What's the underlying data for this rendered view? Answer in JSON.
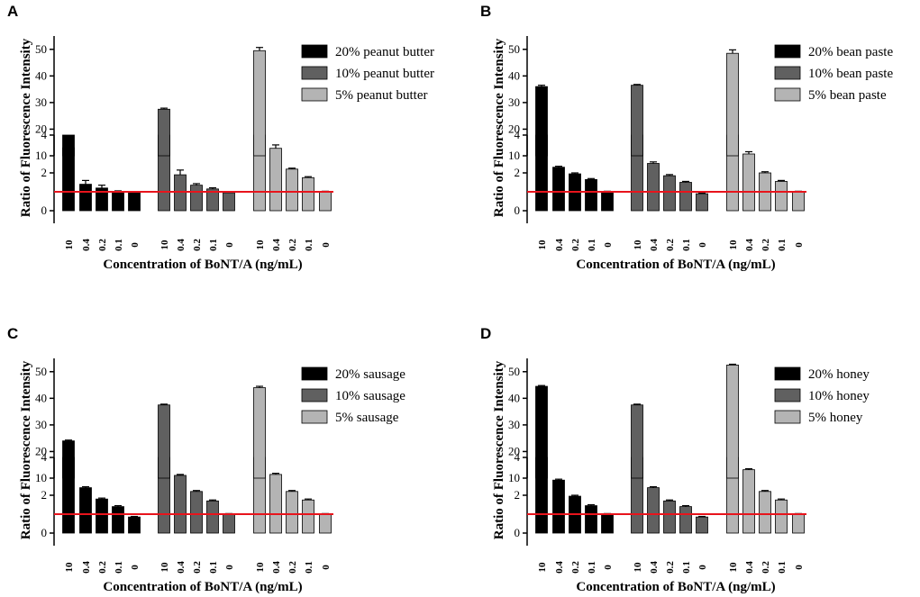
{
  "colors": {
    "series": [
      "#000000",
      "#606060",
      "#b4b4b4"
    ],
    "threshold": "#e8141c",
    "axis": "#000000"
  },
  "chart_data": [
    {
      "panel": "A",
      "type": "bar",
      "title": "",
      "xlabel": "Concentration of BoNT/A (ng/mL)",
      "ylabel": "Ratio of Fluorescence Intensity",
      "axis_break": {
        "lower_range": [
          0,
          4
        ],
        "upper_range": [
          10,
          55
        ]
      },
      "yticks_lower": [
        0,
        2,
        4
      ],
      "yticks_upper": [
        10,
        20,
        30,
        40,
        50
      ],
      "threshold": 1,
      "categories": [
        "10",
        "0.4",
        "0.2",
        "0.1",
        "0"
      ],
      "legend_position": "top-right",
      "series": [
        {
          "name": "20% peanut butter",
          "values": [
            13,
            1.4,
            1.2,
            1.0,
            0.95
          ],
          "errors": [
            0.3,
            0.2,
            0.15,
            0.05,
            0.05
          ]
        },
        {
          "name": "10% peanut butter",
          "values": [
            27.5,
            1.9,
            1.35,
            1.15,
            0.95
          ],
          "errors": [
            0.4,
            0.25,
            0.08,
            0.06,
            0.05
          ]
        },
        {
          "name": "5% peanut butter",
          "values": [
            49.5,
            3.3,
            2.2,
            1.75,
            1.0
          ],
          "errors": [
            1.2,
            0.18,
            0.05,
            0.05,
            0.03
          ]
        }
      ]
    },
    {
      "panel": "B",
      "type": "bar",
      "title": "",
      "xlabel": "Concentration of BoNT/A (ng/mL)",
      "ylabel": "Ratio of Fluorescence Intensity",
      "axis_break": {
        "lower_range": [
          0,
          4
        ],
        "upper_range": [
          10,
          55
        ]
      },
      "yticks_lower": [
        0,
        2,
        4
      ],
      "yticks_upper": [
        10,
        20,
        30,
        40,
        50
      ],
      "threshold": 1,
      "categories": [
        "10",
        "0.4",
        "0.2",
        "0.1",
        "0"
      ],
      "legend_position": "top-right",
      "series": [
        {
          "name": "20% bean paste",
          "values": [
            36,
            2.3,
            1.95,
            1.65,
            1.0
          ],
          "errors": [
            0.5,
            0.05,
            0.05,
            0.05,
            0.03
          ]
        },
        {
          "name": "10% bean paste",
          "values": [
            36.5,
            2.5,
            1.85,
            1.5,
            0.9
          ],
          "errors": [
            0.3,
            0.08,
            0.06,
            0.05,
            0.03
          ]
        },
        {
          "name": "5% bean paste",
          "values": [
            48.5,
            3.0,
            2.0,
            1.55,
            1.0
          ],
          "errors": [
            1.3,
            0.12,
            0.06,
            0.05,
            0.03
          ]
        }
      ]
    },
    {
      "panel": "C",
      "type": "bar",
      "title": "",
      "xlabel": "Concentration of BoNT/A (ng/mL)",
      "ylabel": "Ratio of Fluorescence Intensity",
      "axis_break": {
        "lower_range": [
          0,
          4
        ],
        "upper_range": [
          10,
          55
        ]
      },
      "yticks_lower": [
        0,
        2,
        4
      ],
      "yticks_upper": [
        10,
        20,
        30,
        40,
        50
      ],
      "threshold": 1,
      "categories": [
        "10",
        "0.4",
        "0.2",
        "0.1",
        "0"
      ],
      "legend_position": "top-right",
      "series": [
        {
          "name": "20% sausage",
          "values": [
            24,
            2.4,
            1.8,
            1.4,
            0.85
          ],
          "errors": [
            0.3,
            0.05,
            0.05,
            0.05,
            0.03
          ]
        },
        {
          "name": "10% sausage",
          "values": [
            37.5,
            3.05,
            2.2,
            1.7,
            1.0
          ],
          "errors": [
            0.3,
            0.05,
            0.05,
            0.05,
            0.03
          ]
        },
        {
          "name": "5% sausage",
          "values": [
            44,
            3.1,
            2.2,
            1.75,
            1.0
          ],
          "errors": [
            0.5,
            0.06,
            0.05,
            0.05,
            0.03
          ]
        }
      ]
    },
    {
      "panel": "D",
      "type": "bar",
      "title": "",
      "xlabel": "Concentration of BoNT/A (ng/mL)",
      "ylabel": "Ratio of Fluorescence Intensity",
      "axis_break": {
        "lower_range": [
          0,
          4
        ],
        "upper_range": [
          10,
          55
        ]
      },
      "yticks_lower": [
        0,
        2,
        4
      ],
      "yticks_upper": [
        10,
        20,
        30,
        40,
        50
      ],
      "threshold": 1,
      "categories": [
        "10",
        "0.4",
        "0.2",
        "0.1",
        "0"
      ],
      "legend_position": "top-right",
      "series": [
        {
          "name": "20% honey",
          "values": [
            44.5,
            2.8,
            1.95,
            1.45,
            1.0
          ],
          "errors": [
            0.3,
            0.05,
            0.05,
            0.05,
            0.03
          ]
        },
        {
          "name": "10% honey",
          "values": [
            37.5,
            2.4,
            1.7,
            1.4,
            0.85
          ],
          "errors": [
            0.3,
            0.05,
            0.05,
            0.05,
            0.03
          ]
        },
        {
          "name": "5% honey",
          "values": [
            52.5,
            3.35,
            2.2,
            1.75,
            1.0
          ],
          "errors": [
            0.3,
            0.05,
            0.05,
            0.05,
            0.03
          ]
        }
      ]
    }
  ]
}
